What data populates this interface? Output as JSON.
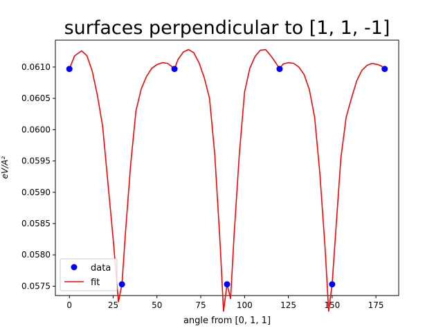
{
  "chart_data": {
    "type": "line",
    "title": "surfaces perpendicular to [1, 1, -1]",
    "xlabel": "angle from [0, 1, 1]",
    "ylabel": "eV/A²",
    "xlim": [
      -8,
      188
    ],
    "ylim": [
      0.05735,
      0.06143
    ],
    "xticks": [
      0,
      25,
      50,
      75,
      100,
      125,
      150,
      175
    ],
    "xtick_labels": [
      "0",
      "25",
      "50",
      "75",
      "100",
      "125",
      "150",
      "175"
    ],
    "yticks": [
      0.0575,
      0.058,
      0.0585,
      0.059,
      0.0595,
      0.06,
      0.0605,
      0.061
    ],
    "ytick_labels": [
      "0.0575",
      "0.0580",
      "0.0585",
      "0.0590",
      "0.0595",
      "0.0600",
      "0.0605",
      "0.0610"
    ],
    "grid": false,
    "legend_position": "lower-left",
    "series": [
      {
        "name": "data",
        "style": "markers",
        "color": "#0000ff",
        "x": [
          0,
          30,
          60,
          90,
          120,
          150,
          180
        ],
        "y": [
          0.06097,
          0.05753,
          0.06097,
          0.05753,
          0.06097,
          0.05753,
          0.06097
        ]
      },
      {
        "name": "fit",
        "style": "line",
        "color": "#ff0000",
        "x": [
          0,
          3,
          7,
          10,
          13,
          16,
          19,
          22,
          25,
          28,
          30,
          32,
          35,
          38,
          41,
          44,
          47,
          50,
          53,
          56,
          58,
          60,
          62,
          65,
          68,
          71,
          74,
          77,
          80,
          83,
          86,
          88,
          90,
          92,
          94,
          97,
          100,
          103,
          106,
          109,
          112,
          115,
          118,
          120,
          122,
          125,
          128,
          131,
          134,
          137,
          140,
          143,
          146,
          148,
          150,
          152,
          155,
          158,
          161,
          164,
          167,
          170,
          173,
          176,
          178,
          180
        ],
        "y": [
          0.06097,
          0.06118,
          0.06126,
          0.06118,
          0.06094,
          0.06055,
          0.06005,
          0.05915,
          0.05825,
          0.05725,
          0.05753,
          0.05835,
          0.05945,
          0.0603,
          0.06065,
          0.06085,
          0.06098,
          0.06104,
          0.06107,
          0.06106,
          0.06102,
          0.06097,
          0.06112,
          0.06124,
          0.06128,
          0.06123,
          0.06107,
          0.06083,
          0.0605,
          0.0596,
          0.0582,
          0.0571,
          0.05753,
          0.0573,
          0.0583,
          0.0596,
          0.0606,
          0.06098,
          0.06117,
          0.06127,
          0.06128,
          0.06118,
          0.06106,
          0.06097,
          0.06105,
          0.06107,
          0.06106,
          0.061,
          0.06088,
          0.06064,
          0.0602,
          0.0593,
          0.0581,
          0.0571,
          0.05753,
          0.05835,
          0.05955,
          0.0602,
          0.0605,
          0.06078,
          0.06095,
          0.06103,
          0.06106,
          0.06104,
          0.06102,
          0.06097
        ]
      }
    ]
  }
}
